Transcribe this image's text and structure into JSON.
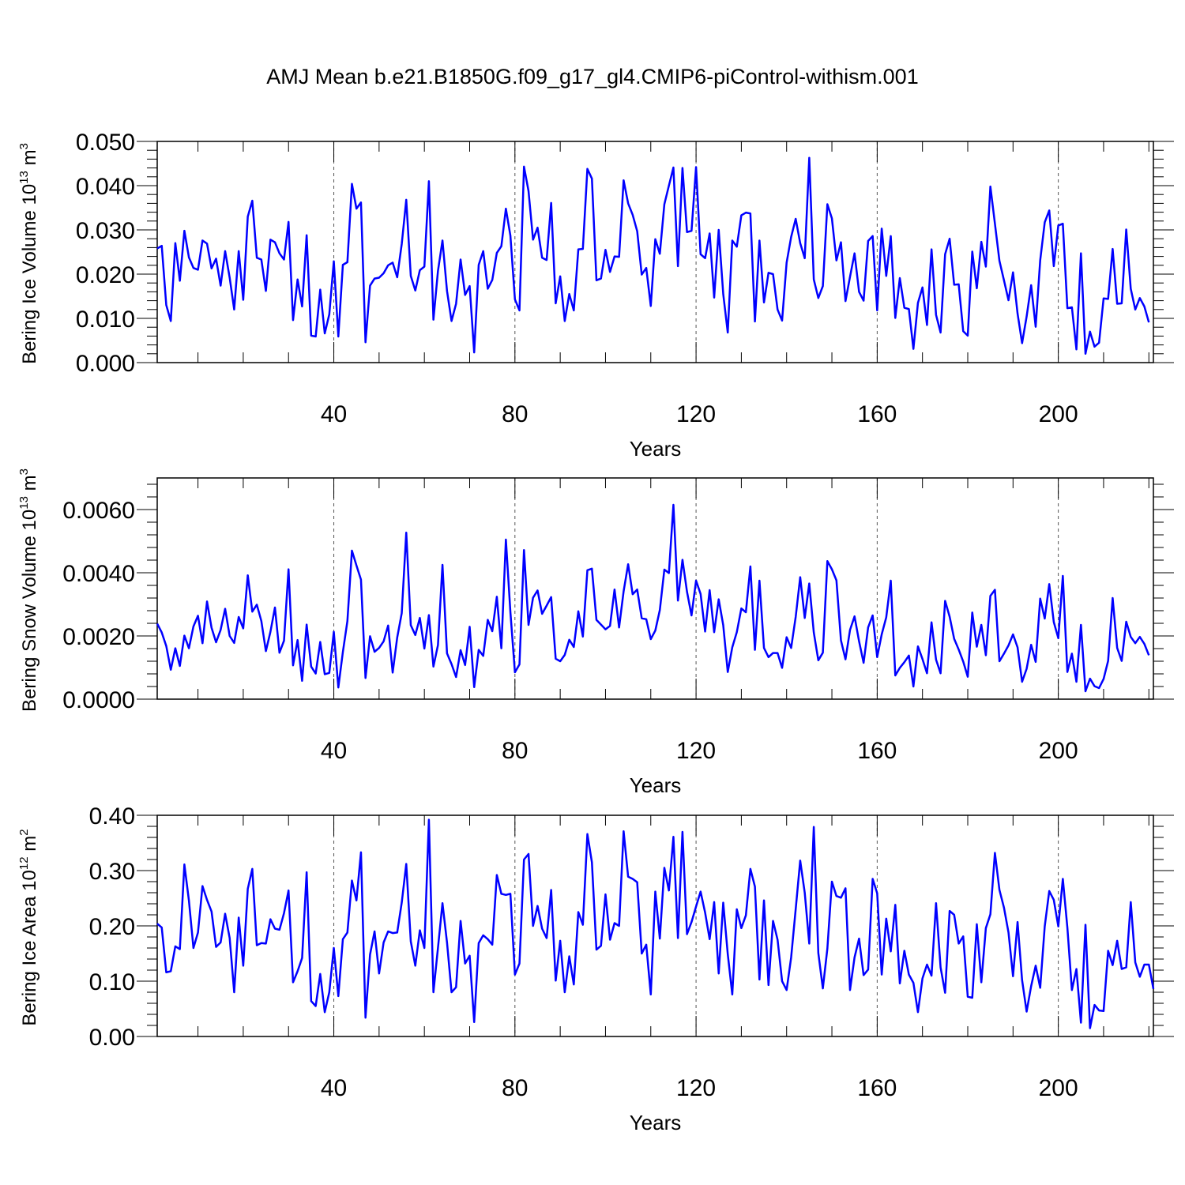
{
  "title": "AMJ Mean b.e21.B1850G.f09_g17_gl4.CMIP6-piControl-withism.001",
  "colors": {
    "line": "#0000ff",
    "axis": "#000000",
    "grid": "#555555"
  },
  "chart_data": [
    {
      "type": "line",
      "title": "AMJ Mean b.e21.B1850G.f09_g17_gl4.CMIP6-piControl-withism.001",
      "ylabel": "Bering Ice Volume",
      "ylabel_unit": "10^13 m^3",
      "ylabel_unit_base": "10",
      "ylabel_unit_exp": "13",
      "ylabel_unit_var": "m",
      "ylabel_unit_var_exp": "3",
      "xlabel": "Years",
      "xlim": [
        1,
        221
      ],
      "ylim": [
        0,
        0.05
      ],
      "yticks": [
        0.0,
        0.01,
        0.02,
        0.03,
        0.04,
        0.05
      ],
      "yticklabels": [
        "0.000",
        "0.010",
        "0.020",
        "0.030",
        "0.040",
        "0.050"
      ],
      "xticks": [
        40,
        80,
        120,
        160,
        200
      ],
      "xticklabels": [
        "40",
        "80",
        "120",
        "160",
        "200"
      ],
      "series": [
        {
          "name": "Bering Ice Volume",
          "x_start": 1,
          "values": [
            0.0258,
            0.0264,
            0.013,
            0.0094,
            0.027,
            0.0185,
            0.0298,
            0.0238,
            0.0214,
            0.021,
            0.0276,
            0.0269,
            0.0213,
            0.0235,
            0.0174,
            0.0252,
            0.0192,
            0.012,
            0.0252,
            0.0142,
            0.033,
            0.0366,
            0.0237,
            0.0233,
            0.0162,
            0.0278,
            0.0272,
            0.0247,
            0.0233,
            0.0318,
            0.0096,
            0.0188,
            0.0127,
            0.0288,
            0.0061,
            0.0059,
            0.0165,
            0.0066,
            0.0109,
            0.0229,
            0.0059,
            0.0221,
            0.0227,
            0.0404,
            0.0348,
            0.0362,
            0.0046,
            0.0174,
            0.019,
            0.0192,
            0.0202,
            0.022,
            0.0226,
            0.0193,
            0.0268,
            0.0368,
            0.0196,
            0.0163,
            0.0209,
            0.0217,
            0.041,
            0.0097,
            0.0207,
            0.0276,
            0.0162,
            0.0094,
            0.0133,
            0.0233,
            0.0153,
            0.0173,
            0.0023,
            0.0221,
            0.0252,
            0.0167,
            0.0187,
            0.0248,
            0.0263,
            0.0348,
            0.0287,
            0.0143,
            0.0118,
            0.0443,
            0.0388,
            0.0278,
            0.0305,
            0.0237,
            0.0232,
            0.0361,
            0.0134,
            0.0195,
            0.0094,
            0.0155,
            0.0118,
            0.0256,
            0.0257,
            0.0438,
            0.0416,
            0.0186,
            0.019,
            0.0255,
            0.0205,
            0.024,
            0.0239,
            0.0412,
            0.036,
            0.0334,
            0.0297,
            0.0199,
            0.0214,
            0.0128,
            0.0279,
            0.0246,
            0.0358,
            0.04,
            0.0441,
            0.0218,
            0.044,
            0.0295,
            0.0298,
            0.0442,
            0.0245,
            0.0236,
            0.0292,
            0.0147,
            0.03,
            0.0155,
            0.0068,
            0.0276,
            0.0262,
            0.0333,
            0.0339,
            0.0337,
            0.0093,
            0.0276,
            0.0136,
            0.0203,
            0.02,
            0.012,
            0.0095,
            0.0226,
            0.0284,
            0.0325,
            0.027,
            0.0236,
            0.0463,
            0.0188,
            0.0146,
            0.0173,
            0.0358,
            0.0326,
            0.0231,
            0.0272,
            0.0139,
            0.0194,
            0.0247,
            0.016,
            0.014,
            0.0275,
            0.0286,
            0.0118,
            0.0303,
            0.0196,
            0.0286,
            0.0101,
            0.0191,
            0.0124,
            0.0121,
            0.0031,
            0.0135,
            0.017,
            0.0085,
            0.0256,
            0.0108,
            0.0068,
            0.0245,
            0.028,
            0.0176,
            0.0177,
            0.0071,
            0.0061,
            0.0251,
            0.0168,
            0.0273,
            0.0217,
            0.0398,
            0.0314,
            0.023,
            0.0186,
            0.0141,
            0.0204,
            0.0111,
            0.0044,
            0.0104,
            0.0175,
            0.0081,
            0.0231,
            0.0317,
            0.0344,
            0.0218,
            0.031,
            0.0314,
            0.0123,
            0.0125,
            0.003,
            0.0247,
            0.002,
            0.007,
            0.0036,
            0.0045,
            0.0145,
            0.0144,
            0.0257,
            0.0133,
            0.0134,
            0.0301,
            0.0167,
            0.012,
            0.0146,
            0.0127,
            0.0091
          ]
        }
      ]
    },
    {
      "type": "line",
      "ylabel": "Bering Snow Volume",
      "ylabel_unit": "10^13 m^3",
      "ylabel_unit_base": "10",
      "ylabel_unit_exp": "13",
      "ylabel_unit_var": "m",
      "ylabel_unit_var_exp": "3",
      "xlabel": "Years",
      "xlim": [
        1,
        221
      ],
      "ylim": [
        0,
        0.007
      ],
      "yticks": [
        0.0,
        0.002,
        0.004,
        0.006
      ],
      "yticklabels": [
        "0.0000",
        "0.0020",
        "0.0040",
        "0.0060"
      ],
      "xticks": [
        40,
        80,
        120,
        160,
        200
      ],
      "xticklabels": [
        "40",
        "80",
        "120",
        "160",
        "200"
      ],
      "series": [
        {
          "name": "Bering Snow Volume",
          "x_start": 1,
          "values": [
            0.00239,
            0.00211,
            0.00168,
            0.00093,
            0.00161,
            0.00105,
            0.00201,
            0.00161,
            0.0023,
            0.00264,
            0.00177,
            0.00309,
            0.00226,
            0.0018,
            0.00219,
            0.00286,
            0.002,
            0.00178,
            0.0026,
            0.00224,
            0.00392,
            0.00277,
            0.00299,
            0.00247,
            0.00152,
            0.00213,
            0.0029,
            0.00147,
            0.00185,
            0.00411,
            0.00107,
            0.00187,
            0.00058,
            0.00236,
            0.00103,
            0.00081,
            0.00181,
            0.00079,
            0.00083,
            0.00213,
            0.00037,
            0.00149,
            0.00247,
            0.0047,
            0.00423,
            0.00378,
            0.00067,
            0.00199,
            0.0015,
            0.00162,
            0.00183,
            0.00233,
            0.00084,
            0.00195,
            0.00272,
            0.00527,
            0.00234,
            0.00203,
            0.00257,
            0.0016,
            0.00266,
            0.00103,
            0.00171,
            0.00425,
            0.00145,
            0.00111,
            0.0007,
            0.00155,
            0.00108,
            0.00229,
            0.00038,
            0.00156,
            0.00137,
            0.00251,
            0.00215,
            0.00324,
            0.00161,
            0.00505,
            0.00275,
            0.00085,
            0.0011,
            0.00472,
            0.00235,
            0.00321,
            0.00344,
            0.0027,
            0.00296,
            0.00323,
            0.00128,
            0.0012,
            0.0014,
            0.00188,
            0.00165,
            0.00278,
            0.00198,
            0.00408,
            0.00413,
            0.00251,
            0.00236,
            0.00221,
            0.00232,
            0.00347,
            0.00227,
            0.00341,
            0.00427,
            0.00332,
            0.00347,
            0.00256,
            0.00253,
            0.0019,
            0.00217,
            0.00282,
            0.0041,
            0.00399,
            0.00615,
            0.00312,
            0.00441,
            0.0034,
            0.00265,
            0.00375,
            0.00333,
            0.00214,
            0.00345,
            0.00212,
            0.00316,
            0.00234,
            0.00086,
            0.00164,
            0.00212,
            0.00287,
            0.00275,
            0.0042,
            0.00156,
            0.00375,
            0.00162,
            0.00133,
            0.00146,
            0.00146,
            0.00099,
            0.00196,
            0.00162,
            0.0026,
            0.00386,
            0.00257,
            0.00366,
            0.00211,
            0.00123,
            0.00147,
            0.00437,
            0.00411,
            0.00376,
            0.00186,
            0.00126,
            0.00219,
            0.00262,
            0.00183,
            0.00115,
            0.00227,
            0.00265,
            0.00133,
            0.00205,
            0.00259,
            0.00375,
            0.00075,
            0.00099,
            0.00117,
            0.00138,
            0.0004,
            0.00167,
            0.00127,
            0.00082,
            0.00243,
            0.00125,
            0.00082,
            0.00311,
            0.00261,
            0.00191,
            0.00157,
            0.00119,
            0.00071,
            0.00274,
            0.00166,
            0.00235,
            0.00139,
            0.00327,
            0.00346,
            0.0012,
            0.00144,
            0.0017,
            0.00205,
            0.00164,
            0.00055,
            0.00096,
            0.00172,
            0.00118,
            0.00318,
            0.00255,
            0.00364,
            0.00244,
            0.00193,
            0.0039,
            0.00086,
            0.00144,
            0.00055,
            0.00235,
            0.00025,
            0.00065,
            0.00041,
            0.00035,
            0.00064,
            0.00121,
            0.0032,
            0.00162,
            0.00121,
            0.00245,
            0.00197,
            0.00177,
            0.00197,
            0.00175,
            0.00139
          ]
        }
      ]
    },
    {
      "type": "line",
      "ylabel": "Bering Ice Area",
      "ylabel_unit": "10^12 m^2",
      "ylabel_unit_base": "10",
      "ylabel_unit_exp": "12",
      "ylabel_unit_var": "m",
      "ylabel_unit_var_exp": "2",
      "xlabel": "Years",
      "xlim": [
        1,
        221
      ],
      "ylim": [
        0,
        0.4
      ],
      "yticks": [
        0.0,
        0.1,
        0.2,
        0.3,
        0.4
      ],
      "yticklabels": [
        "0.00",
        "0.10",
        "0.20",
        "0.30",
        "0.40"
      ],
      "xticks": [
        40,
        80,
        120,
        160,
        200
      ],
      "xticklabels": [
        "40",
        "80",
        "120",
        "160",
        "200"
      ],
      "series": [
        {
          "name": "Bering Ice Area",
          "x_start": 1,
          "values": [
            0.204,
            0.197,
            0.116,
            0.118,
            0.163,
            0.158,
            0.311,
            0.246,
            0.16,
            0.188,
            0.272,
            0.247,
            0.226,
            0.162,
            0.17,
            0.222,
            0.178,
            0.08,
            0.215,
            0.128,
            0.267,
            0.303,
            0.165,
            0.169,
            0.168,
            0.212,
            0.195,
            0.193,
            0.223,
            0.264,
            0.098,
            0.118,
            0.142,
            0.297,
            0.064,
            0.055,
            0.113,
            0.044,
            0.08,
            0.16,
            0.073,
            0.176,
            0.188,
            0.282,
            0.246,
            0.333,
            0.034,
            0.148,
            0.19,
            0.114,
            0.17,
            0.19,
            0.187,
            0.188,
            0.242,
            0.312,
            0.172,
            0.128,
            0.192,
            0.16,
            0.392,
            0.08,
            0.16,
            0.241,
            0.17,
            0.08,
            0.089,
            0.209,
            0.132,
            0.146,
            0.026,
            0.169,
            0.183,
            0.176,
            0.166,
            0.292,
            0.258,
            0.256,
            0.258,
            0.112,
            0.132,
            0.32,
            0.33,
            0.2,
            0.236,
            0.195,
            0.178,
            0.265,
            0.101,
            0.173,
            0.08,
            0.145,
            0.094,
            0.225,
            0.202,
            0.366,
            0.315,
            0.157,
            0.164,
            0.257,
            0.175,
            0.205,
            0.2,
            0.371,
            0.289,
            0.285,
            0.279,
            0.15,
            0.166,
            0.076,
            0.262,
            0.177,
            0.305,
            0.264,
            0.361,
            0.178,
            0.37,
            0.185,
            0.207,
            0.235,
            0.262,
            0.224,
            0.176,
            0.243,
            0.114,
            0.242,
            0.149,
            0.076,
            0.23,
            0.196,
            0.219,
            0.303,
            0.271,
            0.103,
            0.246,
            0.093,
            0.209,
            0.175,
            0.1,
            0.084,
            0.143,
            0.23,
            0.318,
            0.26,
            0.168,
            0.379,
            0.151,
            0.087,
            0.159,
            0.28,
            0.254,
            0.251,
            0.268,
            0.084,
            0.143,
            0.177,
            0.111,
            0.121,
            0.285,
            0.259,
            0.112,
            0.213,
            0.154,
            0.238,
            0.096,
            0.155,
            0.112,
            0.097,
            0.044,
            0.105,
            0.13,
            0.11,
            0.241,
            0.125,
            0.079,
            0.227,
            0.22,
            0.168,
            0.181,
            0.072,
            0.07,
            0.203,
            0.098,
            0.196,
            0.221,
            0.332,
            0.265,
            0.233,
            0.188,
            0.109,
            0.207,
            0.102,
            0.045,
            0.091,
            0.128,
            0.088,
            0.199,
            0.263,
            0.247,
            0.199,
            0.285,
            0.197,
            0.084,
            0.122,
            0.025,
            0.202,
            0.015,
            0.057,
            0.047,
            0.046,
            0.155,
            0.129,
            0.173,
            0.122,
            0.125,
            0.243,
            0.134,
            0.108,
            0.13,
            0.13,
            0.086
          ]
        }
      ]
    }
  ]
}
